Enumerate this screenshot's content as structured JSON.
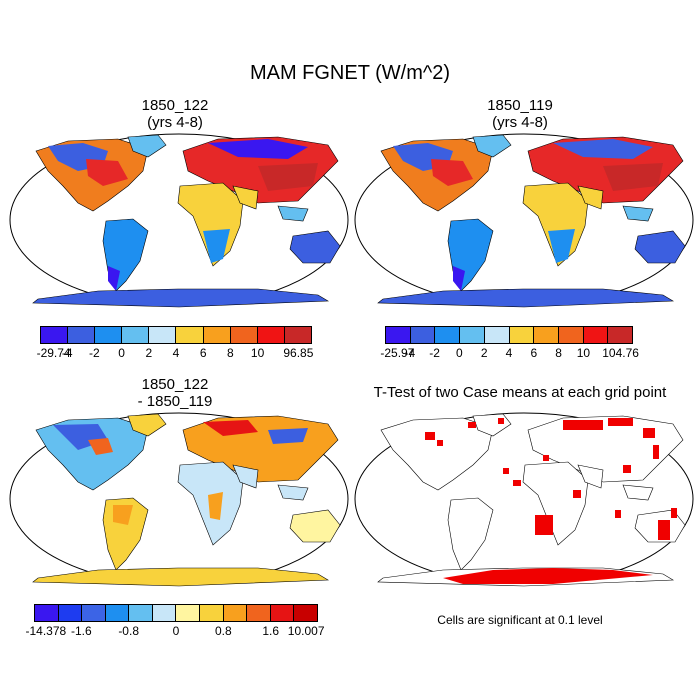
{
  "title": "MAM FGNET (W/m^2)",
  "panels": [
    {
      "title_line1": "1850_122",
      "title_line2": "(yrs 4-8)"
    },
    {
      "title_line1": "1850_119",
      "title_line2": "(yrs 4-8)"
    },
    {
      "title_line1": "1850_122",
      "title_line2": "- 1850_119"
    },
    {
      "title_line1": "T-Test of two Case means at each grid point",
      "title_line2": ""
    }
  ],
  "colorbars": [
    {
      "colors": [
        "#3a17f0",
        "#3c5fe0",
        "#1e8ff0",
        "#64bff0",
        "#c8e6f8",
        "#f8d23c",
        "#f8a01e",
        "#f0641e",
        "#f01414",
        "#c82828"
      ],
      "labels": [
        "-29.74",
        "-4",
        "-2",
        "0",
        "2",
        "4",
        "6",
        "8",
        "10",
        "96.85"
      ]
    },
    {
      "colors": [
        "#3a17f0",
        "#3c5fe0",
        "#1e8ff0",
        "#64bff0",
        "#c8e6f8",
        "#f8d23c",
        "#f8a01e",
        "#f0641e",
        "#f01414",
        "#c82828"
      ],
      "labels": [
        "-25.97",
        "-4",
        "-2",
        "0",
        "2",
        "4",
        "6",
        "8",
        "10",
        "104.76"
      ]
    },
    {
      "colors": [
        "#3a17f0",
        "#1e3cf0",
        "#3c64e6",
        "#1e8ff0",
        "#64bff0",
        "#c8e6f8",
        "#fff5a0",
        "#f8d23c",
        "#f8a01e",
        "#f0641e",
        "#e61414",
        "#c80000"
      ],
      "labels": [
        "-14.378",
        "",
        "-1.6",
        "",
        "-0.8",
        "",
        "0",
        "",
        "0.8",
        "",
        "1.6",
        "",
        "10.007"
      ]
    }
  ],
  "note": "Cells are significant at 0.1 level"
}
